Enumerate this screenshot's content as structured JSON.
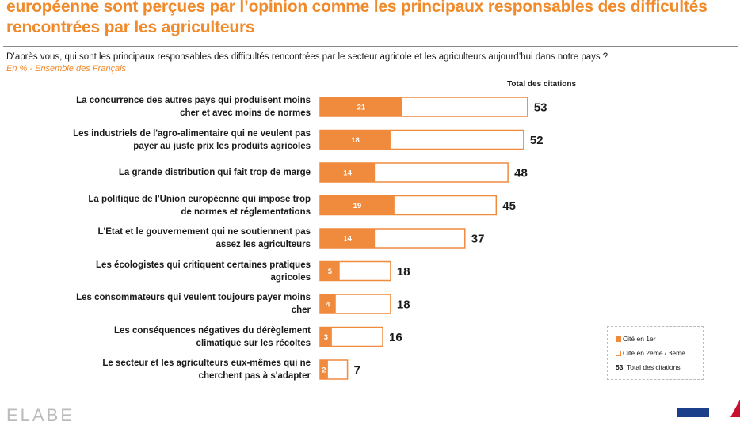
{
  "header": {
    "title": "européenne sont perçues par l’opinion comme les principaux responsables des difficultés\nrencontrées par les agriculteurs",
    "question": "D’après vous, qui sont les principaux responsables des difficultés rencontrées par le secteur agricole et les agriculteurs aujourd’hui dans notre pays ?",
    "subtitle": "En % - Ensemble des Français"
  },
  "chart_data": {
    "type": "bar",
    "orientation": "horizontal",
    "stacked": true,
    "total_header": "Total des citations",
    "categories": [
      "La concurrence des autres pays qui produisent moins\ncher et avec moins de normes",
      "Les industriels de l'agro-alimentaire qui ne veulent pas\npayer au juste prix les produits agricoles",
      "La grande distribution qui fait trop de marge",
      "La politique de l'Union européenne qui impose trop\nde normes et réglementations",
      "L'Etat et le gouvernement qui ne soutiennent pas\nassez les agriculteurs",
      "Les écologistes qui critiquent certaines pratiques\nagricoles",
      "Les consommateurs qui veulent toujours payer moins\ncher",
      "Les conséquences négatives du dérèglement\nclimatique sur les récoltes",
      "Le secteur et les agriculteurs eux-mêmes qui ne\ncherchent pas à s'adapter"
    ],
    "series": [
      {
        "name": "Cité en 1er",
        "values": [
          21,
          18,
          14,
          19,
          14,
          5,
          4,
          3,
          2
        ],
        "color": "#f08a3c"
      },
      {
        "name": "Cité en 2ème / 3ème",
        "values": [
          32,
          34,
          34,
          26,
          23,
          13,
          14,
          13,
          5
        ],
        "color": "#ffffff"
      }
    ],
    "totals": [
      53,
      52,
      48,
      45,
      37,
      18,
      18,
      16,
      7
    ],
    "legend": {
      "placement": "bottom-right",
      "first": "Cité en 1er",
      "second": "Cité en 2ème / 3ème",
      "total_sample": "53",
      "total_label": "Total des citations"
    },
    "xlim": [
      0,
      100
    ],
    "grid": false
  },
  "colors": {
    "accent": "#f08a2b",
    "bar": "#f08a3c"
  },
  "footer": {
    "logo_text": "ELABE"
  }
}
